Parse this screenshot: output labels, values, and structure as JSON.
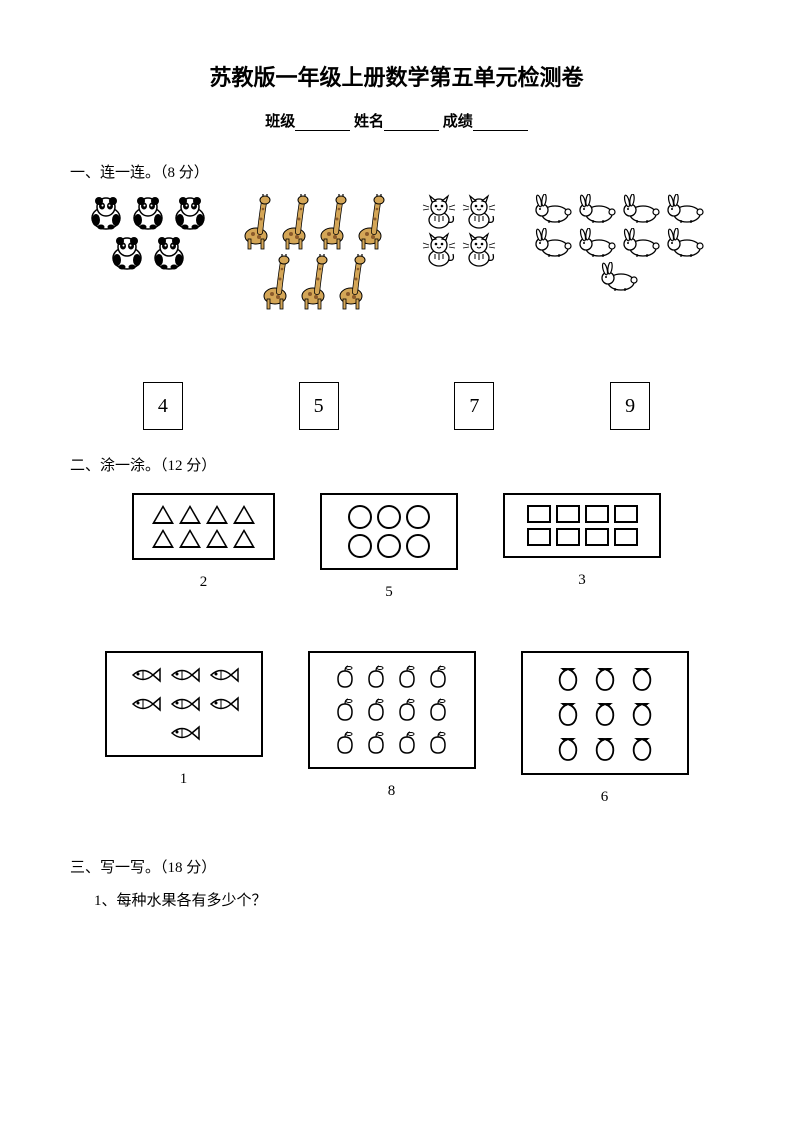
{
  "title": "苏教版一年级上册数学第五单元检测卷",
  "info": {
    "class_label": "班级",
    "name_label": "姓名",
    "score_label": "成绩"
  },
  "q1": {
    "heading": "一、连一连。（8 分）",
    "groups": {
      "pandas": {
        "count": 5,
        "name": "panda"
      },
      "giraffes": {
        "count": 7,
        "name": "giraffe"
      },
      "cats": {
        "count": 4,
        "name": "cat"
      },
      "rabbits": {
        "count": 9,
        "name": "rabbit"
      }
    },
    "boxes": [
      "4",
      "5",
      "7",
      "9"
    ]
  },
  "q2": {
    "heading": "二、涂一涂。（12 分）",
    "row1": [
      {
        "shape": "triangle",
        "count": 8,
        "cols": 4,
        "label": "2"
      },
      {
        "shape": "circle",
        "count": 6,
        "cols": 3,
        "label": "5"
      },
      {
        "shape": "square",
        "count": 8,
        "cols": 4,
        "label": "3"
      }
    ],
    "row2": [
      {
        "shape": "fish",
        "count": 7,
        "cols": 4,
        "label": "1"
      },
      {
        "shape": "apple",
        "count": 12,
        "cols": 4,
        "label": "8"
      },
      {
        "shape": "peach",
        "count": 9,
        "cols": 3,
        "label": "6"
      }
    ]
  },
  "q3": {
    "heading": "三、写一写。（18 分）",
    "sub1": "1、每种水果各有多少个？"
  },
  "colors": {
    "text": "#000000",
    "background": "#ffffff",
    "giraffe_body": "#d4a657",
    "giraffe_spot": "#8b5a2b"
  }
}
